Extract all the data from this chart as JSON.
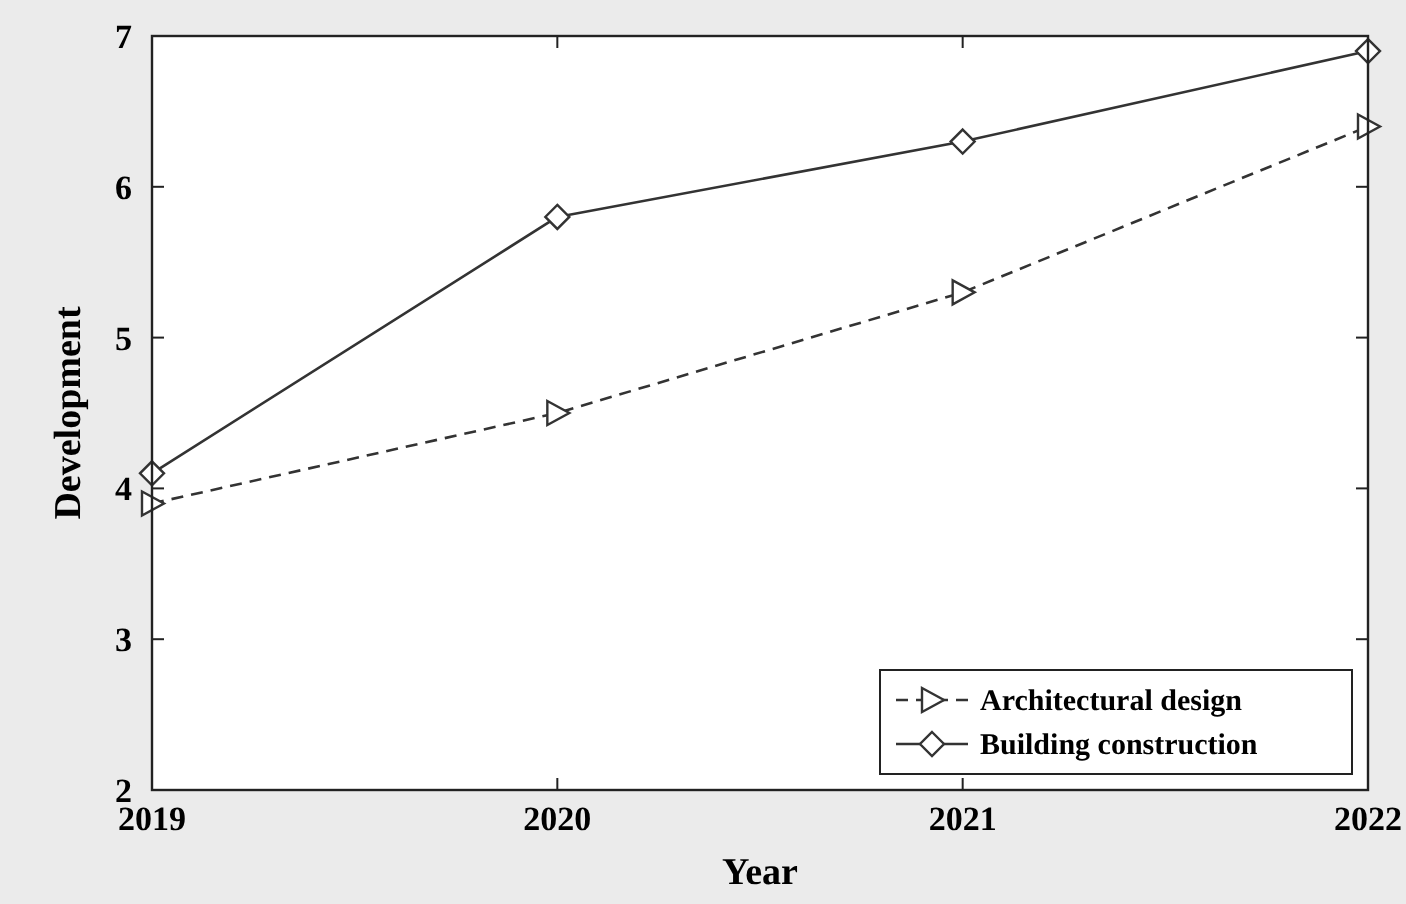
{
  "chart_data": {
    "type": "line",
    "xlabel": "Year",
    "ylabel": "Development",
    "x": [
      2019,
      2020,
      2021,
      2022
    ],
    "xlim": [
      2019,
      2022
    ],
    "xticks": [
      2019,
      2020,
      2021,
      2022
    ],
    "ylim": [
      2,
      7
    ],
    "yticks": [
      2,
      3,
      4,
      5,
      6,
      7
    ],
    "grid": false,
    "legend": "bottom right",
    "series": [
      {
        "name": "Architectural design",
        "color": "#333333",
        "values": [
          3.9,
          4.5,
          5.3,
          6.4
        ],
        "marker": "triangle",
        "line_style": "dashed"
      },
      {
        "name": "Building construction",
        "color": "#333333",
        "values": [
          4.1,
          5.8,
          6.3,
          6.9
        ],
        "marker": "diamond",
        "line_style": "solid"
      }
    ]
  }
}
